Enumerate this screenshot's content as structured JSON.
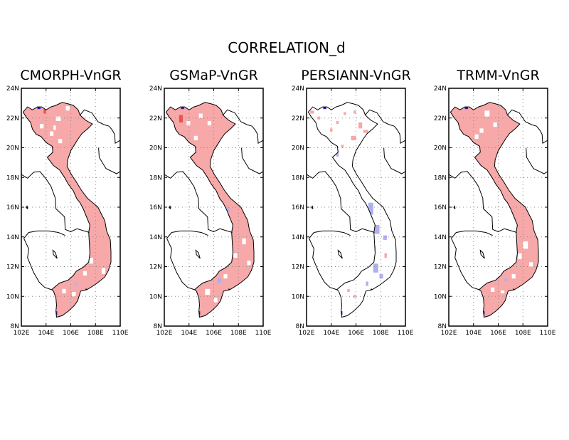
{
  "figure_title": "CORRELATION_d",
  "map_extent": {
    "lon": [
      102,
      110
    ],
    "lat": [
      8,
      24
    ]
  },
  "axes": {
    "lat_ticks": [
      "8N",
      "10N",
      "12N",
      "14N",
      "16N",
      "18N",
      "20N",
      "22N",
      "24N"
    ],
    "lon_ticks": [
      "102E",
      "104E",
      "106E",
      "108E",
      "110E"
    ],
    "grid": true,
    "grid_style": "dotted"
  },
  "colors": {
    "positive": "#f7a8a8",
    "strong_positive": "#f05050",
    "negative": "#b0b0f0",
    "strong_negative": "#2020c0",
    "coastline": "#000000"
  },
  "panels": [
    {
      "title": "CMORPH-VnGR"
    },
    {
      "title": "GSMaP-VnGR"
    },
    {
      "title": "PERSIANN-VnGR"
    },
    {
      "title": "TRMM-VnGR"
    }
  ]
}
